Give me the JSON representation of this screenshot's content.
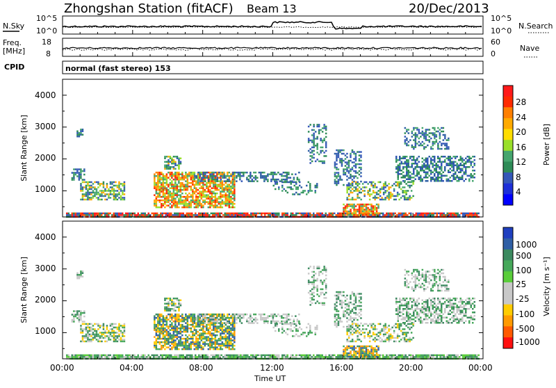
{
  "header": {
    "station_title": "Zhongshan Station (fitACF)",
    "beam": "Beam 13",
    "date": "20/Dec/2013"
  },
  "top_panel": {
    "left_label": "N.Sky",
    "right_label": "N.Search",
    "left_ticks": [
      "10^5",
      "10^0"
    ],
    "right_ticks": [
      "10^5",
      "10^0"
    ]
  },
  "freq_panel": {
    "left_label_line1": "Freq.",
    "left_label_line2": "[MHz]",
    "left_ticks": [
      "18",
      "8"
    ],
    "right_label": "Nave",
    "right_ticks": [
      "60",
      "0"
    ]
  },
  "cpid": {
    "label": "CPID",
    "mode_text": "normal (fast stereo) 153"
  },
  "power_panel": {
    "ylabel": "Slant Range [km]",
    "yticks": [
      "4000",
      "3000",
      "2000",
      "1000"
    ],
    "colorbar_label": "Power [dB]",
    "colorbar_ticks": [
      "28",
      "24",
      "20",
      "16",
      "12",
      "8",
      "4"
    ],
    "colorbar_colors": [
      "#ff1a1a",
      "#ff2a00",
      "#ff7f00",
      "#ffaa00",
      "#ffdd00",
      "#9adf2a",
      "#45a56e",
      "#2e8b57",
      "#3457b8",
      "#1d2fd8",
      "#0000ff"
    ]
  },
  "velocity_panel": {
    "ylabel": "Slant Range [km]",
    "yticks": [
      "4000",
      "3000",
      "2000",
      "1000"
    ],
    "colorbar_label": "Velocity [m s⁻¹]",
    "colorbar_ticks": [
      "1000",
      "500",
      "100",
      "25",
      "-25",
      "-100",
      "-500",
      "-1000"
    ],
    "colorbar_colors": [
      "#1f3fbf",
      "#2f5fa5",
      "#3c8a60",
      "#46a85a",
      "#5acd3a",
      "#c8c8c8",
      "#c8c8c8",
      "#ffcc00",
      "#ff9a00",
      "#ff5a00",
      "#ff1010"
    ]
  },
  "x_axis": {
    "ticks": [
      "00:00",
      "04:00",
      "08:00",
      "12:00",
      "16:00",
      "20:00",
      "00:00"
    ],
    "label": "Time UT"
  },
  "chart_data": {
    "type": "heatmap",
    "x_range_hours": [
      0,
      24
    ],
    "y_range_km": [
      180,
      4500
    ],
    "panels": [
      "power",
      "velocity"
    ]
  }
}
